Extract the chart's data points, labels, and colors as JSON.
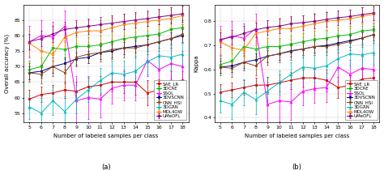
{
  "x": [
    5,
    6,
    7,
    8,
    9,
    10,
    11,
    12,
    13,
    14,
    15,
    16,
    17,
    18
  ],
  "methods": [
    "SAE_LR",
    "3DCAE",
    "SSOL",
    "3DVSCNN",
    "CNN_HSI",
    "3DGAN",
    "MDL4OW",
    "UMeOFL"
  ],
  "colors": [
    "#cc0000",
    "#00bb00",
    "#ff00ff",
    "#00008b",
    "#8B4513",
    "#00bbbb",
    "#ff8800",
    "#800080"
  ],
  "markers": [
    "s",
    "o",
    "^",
    "s",
    "s",
    "^",
    "o",
    "o"
  ],
  "oa_mean": [
    [
      59.5,
      61.0,
      61.5,
      62.5,
      62.0,
      63.5,
      64.0,
      65.0,
      65.0,
      65.0,
      61.5,
      62.5,
      65.0,
      65.5
    ],
    [
      69.0,
      70.0,
      76.0,
      75.5,
      76.5,
      76.5,
      77.0,
      78.0,
      79.0,
      79.5,
      80.0,
      80.5,
      82.0,
      82.5
    ],
    [
      78.0,
      80.0,
      79.5,
      83.0,
      59.0,
      60.0,
      59.5,
      63.0,
      64.0,
      64.0,
      72.0,
      69.0,
      71.0,
      70.0
    ],
    [
      68.0,
      68.5,
      70.0,
      71.0,
      72.5,
      73.0,
      74.5,
      75.0,
      76.0,
      76.5,
      77.0,
      78.0,
      79.0,
      80.0
    ],
    [
      68.0,
      67.5,
      70.0,
      68.0,
      73.0,
      74.0,
      74.5,
      75.5,
      76.0,
      76.0,
      77.0,
      78.0,
      79.0,
      80.5
    ],
    [
      57.0,
      55.0,
      59.0,
      55.5,
      59.5,
      62.5,
      65.5,
      68.0,
      67.5,
      68.5,
      71.5,
      73.5,
      73.0,
      74.0
    ],
    [
      77.5,
      75.0,
      74.0,
      79.5,
      81.0,
      81.5,
      81.5,
      82.5,
      83.5,
      84.0,
      84.5,
      85.0,
      85.5,
      86.5
    ],
    [
      78.0,
      79.0,
      80.5,
      82.0,
      82.5,
      83.0,
      83.5,
      84.0,
      84.5,
      85.0,
      85.5,
      86.0,
      86.5,
      87.0
    ]
  ],
  "oa_std": [
    [
      3.0,
      2.5,
      2.5,
      2.5,
      3.0,
      3.0,
      3.0,
      3.0,
      3.5,
      4.0,
      4.0,
      3.5,
      3.5,
      3.0
    ],
    [
      3.0,
      3.0,
      3.0,
      3.0,
      3.0,
      3.0,
      3.0,
      3.0,
      3.0,
      3.0,
      3.0,
      3.0,
      2.5,
      2.5
    ],
    [
      5.0,
      5.0,
      5.0,
      5.0,
      8.0,
      7.0,
      6.0,
      5.0,
      5.0,
      5.0,
      5.0,
      5.0,
      5.0,
      5.0
    ],
    [
      2.0,
      2.0,
      2.0,
      2.0,
      2.0,
      2.0,
      2.0,
      2.0,
      2.0,
      2.0,
      2.0,
      2.0,
      2.0,
      2.0
    ],
    [
      3.0,
      3.0,
      3.0,
      3.5,
      3.0,
      3.0,
      3.0,
      3.0,
      3.0,
      3.0,
      3.0,
      3.0,
      3.0,
      3.0
    ],
    [
      4.0,
      5.0,
      4.5,
      5.0,
      4.5,
      4.0,
      4.0,
      4.0,
      4.5,
      5.0,
      4.0,
      4.0,
      4.0,
      4.0
    ],
    [
      4.0,
      5.0,
      5.0,
      4.0,
      3.5,
      3.5,
      3.5,
      3.5,
      3.5,
      3.0,
      3.0,
      3.0,
      3.0,
      3.0
    ],
    [
      2.5,
      2.5,
      2.5,
      2.5,
      2.5,
      2.5,
      2.5,
      2.5,
      2.5,
      2.5,
      2.5,
      2.5,
      2.5,
      2.5
    ]
  ],
  "kappa_mean": [
    [
      0.505,
      0.515,
      0.525,
      0.535,
      0.535,
      0.545,
      0.555,
      0.565,
      0.565,
      0.555,
      0.525,
      0.535,
      0.56,
      0.565
    ],
    [
      0.62,
      0.635,
      0.695,
      0.685,
      0.695,
      0.695,
      0.705,
      0.715,
      0.725,
      0.73,
      0.74,
      0.745,
      0.76,
      0.765
    ],
    [
      0.72,
      0.74,
      0.73,
      0.77,
      0.455,
      0.47,
      0.465,
      0.51,
      0.52,
      0.525,
      0.61,
      0.58,
      0.605,
      0.6
    ],
    [
      0.61,
      0.615,
      0.63,
      0.64,
      0.655,
      0.665,
      0.678,
      0.685,
      0.695,
      0.7,
      0.71,
      0.72,
      0.73,
      0.745
    ],
    [
      0.61,
      0.605,
      0.63,
      0.615,
      0.655,
      0.665,
      0.675,
      0.685,
      0.695,
      0.695,
      0.705,
      0.715,
      0.73,
      0.745
    ],
    [
      0.47,
      0.455,
      0.505,
      0.475,
      0.51,
      0.545,
      0.58,
      0.61,
      0.605,
      0.615,
      0.645,
      0.665,
      0.66,
      0.67
    ],
    [
      0.715,
      0.69,
      0.68,
      0.75,
      0.76,
      0.77,
      0.77,
      0.78,
      0.79,
      0.8,
      0.805,
      0.81,
      0.82,
      0.83
    ],
    [
      0.725,
      0.735,
      0.75,
      0.765,
      0.775,
      0.78,
      0.79,
      0.795,
      0.8,
      0.808,
      0.815,
      0.82,
      0.828,
      0.835
    ]
  ],
  "kappa_std": [
    [
      0.035,
      0.03,
      0.03,
      0.03,
      0.035,
      0.035,
      0.035,
      0.035,
      0.04,
      0.045,
      0.045,
      0.04,
      0.04,
      0.035
    ],
    [
      0.035,
      0.035,
      0.035,
      0.035,
      0.035,
      0.035,
      0.035,
      0.035,
      0.035,
      0.035,
      0.035,
      0.035,
      0.03,
      0.03
    ],
    [
      0.06,
      0.06,
      0.06,
      0.06,
      0.095,
      0.085,
      0.075,
      0.06,
      0.06,
      0.06,
      0.06,
      0.06,
      0.06,
      0.06
    ],
    [
      0.025,
      0.025,
      0.025,
      0.025,
      0.025,
      0.025,
      0.025,
      0.025,
      0.025,
      0.025,
      0.025,
      0.025,
      0.025,
      0.025
    ],
    [
      0.035,
      0.035,
      0.035,
      0.04,
      0.035,
      0.035,
      0.035,
      0.035,
      0.035,
      0.035,
      0.035,
      0.035,
      0.035,
      0.035
    ],
    [
      0.05,
      0.06,
      0.055,
      0.06,
      0.055,
      0.05,
      0.05,
      0.05,
      0.055,
      0.06,
      0.05,
      0.05,
      0.05,
      0.05
    ],
    [
      0.05,
      0.06,
      0.06,
      0.05,
      0.045,
      0.045,
      0.045,
      0.045,
      0.045,
      0.04,
      0.04,
      0.04,
      0.04,
      0.04
    ],
    [
      0.03,
      0.03,
      0.03,
      0.03,
      0.03,
      0.03,
      0.03,
      0.03,
      0.03,
      0.03,
      0.03,
      0.03,
      0.03,
      0.03
    ]
  ],
  "oa_ylim": [
    52,
    90
  ],
  "oa_yticks": [
    55,
    60,
    65,
    70,
    75,
    80,
    85
  ],
  "kappa_ylim": [
    0.38,
    0.87
  ],
  "kappa_yticks": [
    0.4,
    0.5,
    0.6,
    0.7,
    0.8
  ],
  "xlabel": "Number of labeled samples per class",
  "oa_ylabel": "Overall accuracy (%)",
  "kappa_ylabel": "Kappa",
  "subplot_a": "(a)",
  "subplot_b": "(b)",
  "background_color": "#ffffff",
  "legend_fontsize": 4.0,
  "tick_fontsize": 4.5,
  "label_fontsize": 5.0,
  "sublabel_fontsize": 6.0,
  "markersize": 2.0,
  "linewidth": 0.7,
  "capsize": 1.0,
  "elinewidth": 0.5
}
